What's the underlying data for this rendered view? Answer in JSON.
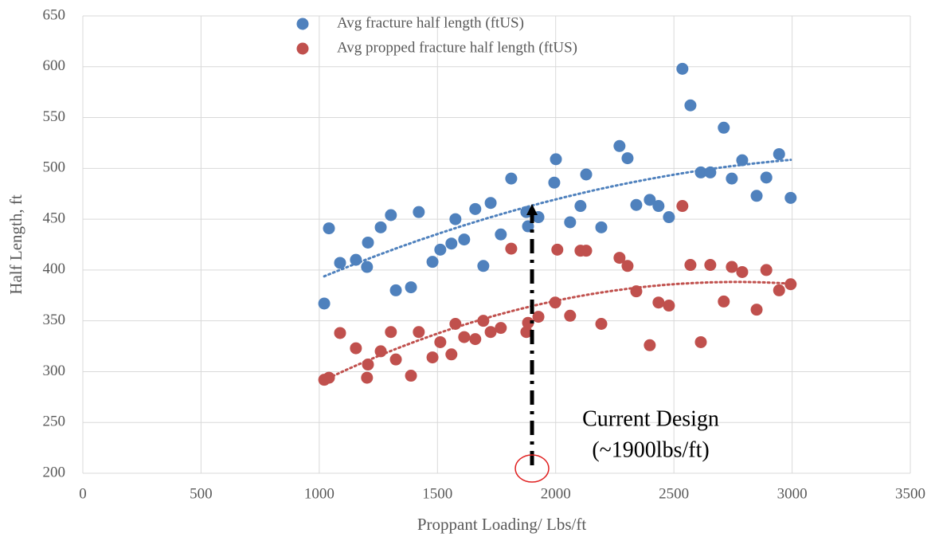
{
  "chart_data": {
    "type": "scatter",
    "xlabel": "Proppant Loading/ Lbs/ft",
    "ylabel": "Half Length, ft",
    "xlim": [
      0,
      3500
    ],
    "ylim": [
      200,
      650
    ],
    "xticks": [
      0,
      500,
      1000,
      1500,
      2000,
      2500,
      3000,
      3500
    ],
    "yticks": [
      200,
      250,
      300,
      350,
      400,
      450,
      500,
      550,
      600,
      650
    ],
    "grid": true,
    "legend": "top",
    "trendline": "polynomial",
    "series": [
      {
        "name": "Avg fracture half length (ftUS)",
        "color": "#4f81bd",
        "x": [
          1021,
          1041,
          1088,
          1155,
          1202,
          1206,
          1260,
          1303,
          1324,
          1388,
          1421,
          1479,
          1512,
          1559,
          1576,
          1613,
          1660,
          1694,
          1725,
          1768,
          1812,
          1876,
          1883,
          1927,
          1994,
          2001,
          2061,
          2105,
          2129,
          2193,
          2270,
          2304,
          2341,
          2398,
          2435,
          2479,
          2536,
          2570,
          2614,
          2654,
          2711,
          2745,
          2789,
          2850,
          2891,
          2945,
          2994
        ],
        "values": [
          367,
          441,
          407,
          410,
          403,
          427,
          442,
          454,
          380,
          383,
          457,
          408,
          420,
          426,
          450,
          430,
          460,
          404,
          466,
          435,
          490,
          457,
          443,
          452,
          486,
          509,
          447,
          463,
          494,
          442,
          522,
          510,
          464,
          469,
          463,
          452,
          598,
          562,
          496,
          496,
          540,
          490,
          508,
          473,
          491,
          514,
          471
        ]
      },
      {
        "name": "Avg propped fracture half length (ftUS)",
        "color": "#c0504d",
        "x": [
          1021,
          1041,
          1088,
          1155,
          1202,
          1206,
          1260,
          1303,
          1324,
          1388,
          1421,
          1479,
          1512,
          1559,
          1576,
          1613,
          1660,
          1694,
          1725,
          1768,
          1812,
          1876,
          1883,
          1927,
          1998,
          2007,
          2061,
          2105,
          2129,
          2193,
          2270,
          2304,
          2341,
          2398,
          2435,
          2479,
          2536,
          2570,
          2614,
          2654,
          2711,
          2745,
          2789,
          2850,
          2891,
          2945,
          2994
        ],
        "values": [
          292,
          294,
          338,
          323,
          294,
          307,
          320,
          339,
          312,
          296,
          339,
          314,
          329,
          317,
          347,
          334,
          332,
          350,
          339,
          343,
          421,
          339,
          348,
          354,
          368,
          420,
          355,
          419,
          419,
          347,
          412,
          404,
          379,
          326,
          368,
          365,
          463,
          405,
          329,
          405,
          369,
          403,
          398,
          361,
          400,
          380,
          386
        ]
      }
    ],
    "annotation": {
      "text": [
        "Current Design",
        "(~1900lbs/ft)"
      ],
      "arrow_x": 1900,
      "arrow_y": [
        200,
        465
      ]
    }
  }
}
